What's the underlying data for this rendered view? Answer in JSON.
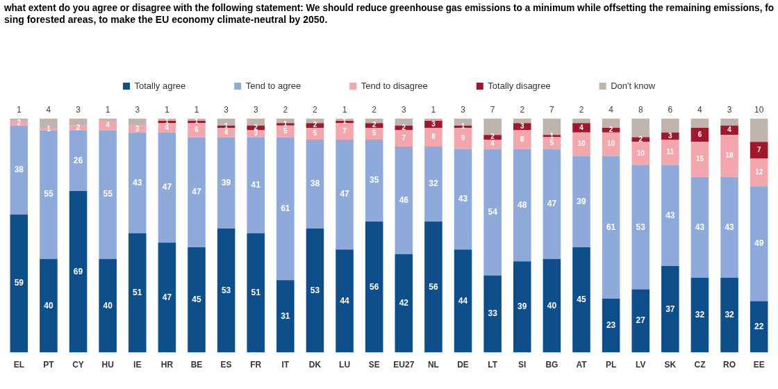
{
  "chart_data": {
    "type": "bar",
    "title": [
      "what extent do you agree or disagree with the following statement: We should reduce greenhouse gas emissions to a minimum while offsetting the remaining emissions, fo",
      "sing forested areas, to make the EU economy climate-neutral by 2050."
    ],
    "categories": [
      "EL",
      "PT",
      "CY",
      "HU",
      "IE",
      "HR",
      "BE",
      "ES",
      "FR",
      "IT",
      "DK",
      "LU",
      "SE",
      "EU27",
      "NL",
      "DE",
      "LT",
      "SI",
      "BG",
      "AT",
      "PL",
      "LV",
      "SK",
      "CZ",
      "RO",
      "EE"
    ],
    "series": [
      {
        "name": "Totally agree",
        "color": "#0d4f8b",
        "values": [
          59,
          40,
          69,
          40,
          51,
          47,
          45,
          53,
          51,
          31,
          53,
          44,
          56,
          42,
          56,
          44,
          33,
          39,
          40,
          45,
          23,
          27,
          37,
          32,
          32,
          22
        ]
      },
      {
        "name": "Tend to agree",
        "color": "#8eaadb",
        "values": [
          38,
          55,
          26,
          55,
          43,
          47,
          47,
          39,
          41,
          61,
          38,
          47,
          35,
          46,
          32,
          43,
          54,
          48,
          47,
          39,
          61,
          53,
          43,
          43,
          43,
          49
        ]
      },
      {
        "name": "Tend to disagree",
        "color": "#f4a6ad",
        "values": [
          2,
          1,
          2,
          4,
          3,
          4,
          6,
          4,
          3,
          5,
          5,
          7,
          5,
          7,
          8,
          9,
          4,
          8,
          5,
          10,
          10,
          10,
          11,
          15,
          18,
          12
        ]
      },
      {
        "name": "Totally disagree",
        "color": "#a3172c",
        "values": [
          0,
          0,
          0,
          0,
          0,
          1,
          1,
          1,
          2,
          1,
          2,
          1,
          2,
          2,
          3,
          1,
          2,
          3,
          1,
          4,
          2,
          2,
          3,
          6,
          4,
          7
        ]
      },
      {
        "name": "Don't know",
        "color": "#bfb3ad",
        "values": [
          1,
          4,
          3,
          1,
          3,
          1,
          1,
          3,
          3,
          2,
          2,
          1,
          2,
          3,
          1,
          3,
          7,
          2,
          7,
          2,
          4,
          8,
          6,
          4,
          3,
          10
        ]
      }
    ],
    "ylim": [
      0,
      100
    ],
    "stacked": true,
    "legend": "top",
    "data_labels": true,
    "tick_labels": "x",
    "grid": false
  }
}
